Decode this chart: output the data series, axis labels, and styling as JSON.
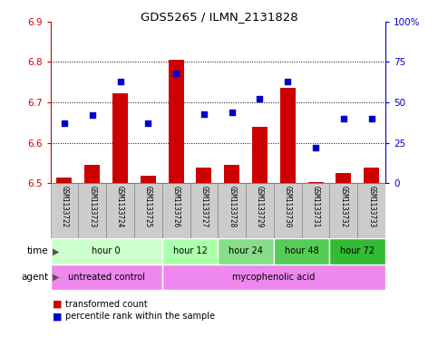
{
  "title": "GDS5265 / ILMN_2131828",
  "samples": [
    "GSM1133722",
    "GSM1133723",
    "GSM1133724",
    "GSM1133725",
    "GSM1133726",
    "GSM1133727",
    "GSM1133728",
    "GSM1133729",
    "GSM1133730",
    "GSM1133731",
    "GSM1133732",
    "GSM1133733"
  ],
  "bar_values": [
    6.515,
    6.545,
    6.722,
    6.518,
    6.805,
    6.54,
    6.545,
    6.64,
    6.735,
    6.503,
    6.525,
    6.54
  ],
  "bar_base": 6.5,
  "percentile_values": [
    37,
    42,
    63,
    37,
    68,
    43,
    44,
    52,
    63,
    22,
    40,
    40
  ],
  "ylim_left": [
    6.5,
    6.9
  ],
  "ylim_right": [
    0,
    100
  ],
  "yticks_left": [
    6.5,
    6.6,
    6.7,
    6.8,
    6.9
  ],
  "yticks_right": [
    0,
    25,
    50,
    75,
    100
  ],
  "ytick_labels_right": [
    "0",
    "25",
    "50",
    "75",
    "100%"
  ],
  "bar_color": "#cc0000",
  "dot_color": "#0000cc",
  "bar_width": 0.55,
  "time_groups": [
    {
      "label": "hour 0",
      "start": 0,
      "end": 4,
      "color": "#ccffcc"
    },
    {
      "label": "hour 12",
      "start": 4,
      "end": 6,
      "color": "#aaffaa"
    },
    {
      "label": "hour 24",
      "start": 6,
      "end": 8,
      "color": "#88dd88"
    },
    {
      "label": "hour 48",
      "start": 8,
      "end": 10,
      "color": "#55cc55"
    },
    {
      "label": "hour 72",
      "start": 10,
      "end": 12,
      "color": "#33bb33"
    }
  ],
  "legend_tc": "transformed count",
  "legend_pr": "percentile rank within the sample",
  "label_time": "time",
  "label_agent": "agent",
  "bg_color": "#ffffff",
  "plot_bg": "#ffffff",
  "tick_color_left": "#cc0000",
  "tick_color_right": "#0000cc",
  "sample_box_color": "#cccccc",
  "sample_box_edge": "#888888",
  "agent_untreated_color": "#ee88ee",
  "agent_myco_color": "#ee88ee",
  "grid_yticks": [
    6.6,
    6.7,
    6.8
  ]
}
